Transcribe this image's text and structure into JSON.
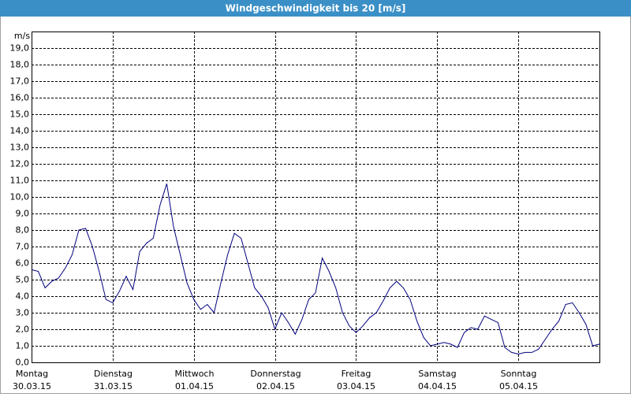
{
  "chart_data": {
    "type": "line",
    "title": "Windgeschwindigkeit bis 20 [m/s]",
    "y_label": "m/s",
    "x": [
      0,
      2,
      4,
      6,
      8,
      10,
      12,
      14,
      16,
      18,
      20,
      22,
      24,
      26,
      28,
      30,
      32,
      34,
      36,
      38,
      40,
      42,
      44,
      46,
      48,
      50,
      52,
      54,
      56,
      58,
      60,
      62,
      64,
      66,
      68,
      70,
      72,
      74,
      76,
      78,
      80,
      82,
      84,
      86,
      88,
      90,
      92,
      94,
      96,
      98,
      100,
      102,
      104,
      106,
      108,
      110,
      112,
      114,
      116,
      118,
      120,
      122,
      124,
      126,
      128,
      130,
      132,
      134,
      136,
      138,
      140,
      142,
      144,
      146,
      148,
      150,
      152,
      154,
      156,
      158,
      160,
      162,
      164,
      166,
      168
    ],
    "series": [
      {
        "name": "Wind",
        "color": "#00007f",
        "values": [
          5.6,
          5.5,
          4.5,
          4.9,
          5.1,
          5.7,
          6.5,
          8.0,
          8.1,
          7.0,
          5.5,
          3.8,
          3.6,
          4.3,
          5.2,
          4.4,
          6.7,
          7.2,
          7.5,
          9.5,
          10.8,
          8.2,
          6.5,
          4.8,
          3.8,
          3.2,
          3.5,
          3.0,
          4.8,
          6.5,
          7.8,
          7.5,
          6.0,
          4.5,
          4.0,
          3.3,
          2.0,
          3.0,
          2.4,
          1.7,
          2.6,
          3.8,
          4.2,
          6.3,
          5.5,
          4.5,
          3.0,
          2.2,
          1.8,
          2.2,
          2.7,
          3.0,
          3.7,
          4.5,
          4.9,
          4.5,
          3.8,
          2.5,
          1.5,
          1.0,
          1.1,
          1.2,
          1.1,
          0.9,
          1.8,
          2.1,
          2.0,
          2.8,
          2.6,
          2.4,
          0.9,
          0.6,
          0.5,
          0.6,
          0.6,
          0.8,
          1.4,
          2.0,
          2.5,
          3.5,
          3.6,
          3.0,
          2.3,
          1.0,
          1.1
        ]
      }
    ],
    "xlim": [
      0,
      168
    ],
    "xticks": [
      {
        "value": 0,
        "label": "Montag"
      },
      {
        "value": 24,
        "label": "Dienstag"
      },
      {
        "value": 48,
        "label": "Mittwoch"
      },
      {
        "value": 72,
        "label": "Donnerstag"
      },
      {
        "value": 96,
        "label": "Freitag"
      },
      {
        "value": 120,
        "label": "Samstag"
      },
      {
        "value": 144,
        "label": "Sonntag"
      }
    ],
    "xtick_dates": [
      "30.03.15",
      "31.03.15",
      "01.04.15",
      "02.04.15",
      "03.04.15",
      "04.04.15",
      "05.04.15"
    ],
    "ylim": [
      0,
      20
    ],
    "yticks": [
      {
        "value": 0,
        "label": "0,0"
      },
      {
        "value": 1,
        "label": "1,0"
      },
      {
        "value": 2,
        "label": "2,0"
      },
      {
        "value": 3,
        "label": "3,0"
      },
      {
        "value": 4,
        "label": "4,0"
      },
      {
        "value": 5,
        "label": "5,0"
      },
      {
        "value": 6,
        "label": "6,0"
      },
      {
        "value": 7,
        "label": "7,0"
      },
      {
        "value": 8,
        "label": "8,0"
      },
      {
        "value": 9,
        "label": "9,0"
      },
      {
        "value": 10,
        "label": "10,0"
      },
      {
        "value": 11,
        "label": "11,0"
      },
      {
        "value": 12,
        "label": "12,0"
      },
      {
        "value": 13,
        "label": "13,0"
      },
      {
        "value": 14,
        "label": "14,0"
      },
      {
        "value": 15,
        "label": "15,0"
      },
      {
        "value": 16,
        "label": "16,0"
      },
      {
        "value": 17,
        "label": "17,0"
      },
      {
        "value": 18,
        "label": "18,0"
      },
      {
        "value": 19,
        "label": "19,0"
      }
    ],
    "grid": true
  }
}
